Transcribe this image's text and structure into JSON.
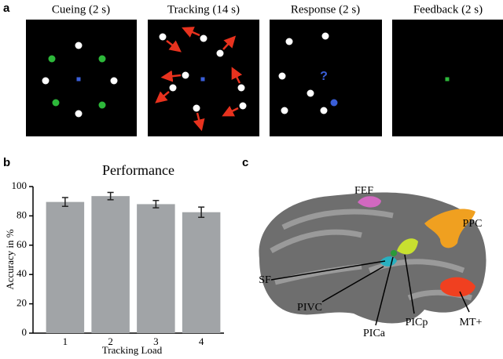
{
  "panel_labels": [
    "a",
    "b",
    "c"
  ],
  "task_panels": [
    "Cueing (2 s)",
    "Tracking (14 s)",
    "Response (2 s)",
    "Feedback (2 s)"
  ],
  "response_symbol": "?",
  "chart_data": {
    "type": "bar",
    "title": "Performance",
    "x_label": "Tracking Load",
    "y_label": "Accuracy in %",
    "categories": [
      "1",
      "2",
      "3",
      "4"
    ],
    "values": [
      89.5,
      93.5,
      88,
      82.5
    ],
    "errors": [
      3,
      2.5,
      2.5,
      3.5
    ],
    "color": "#a1a4a7",
    "ylim": [
      0,
      100
    ],
    "yticks": [
      0,
      20,
      40,
      60,
      80,
      100
    ]
  },
  "brain_labels": [
    "FEF",
    "PPC",
    "SF",
    "PIVC",
    "PICa",
    "PICp",
    "MT+"
  ]
}
